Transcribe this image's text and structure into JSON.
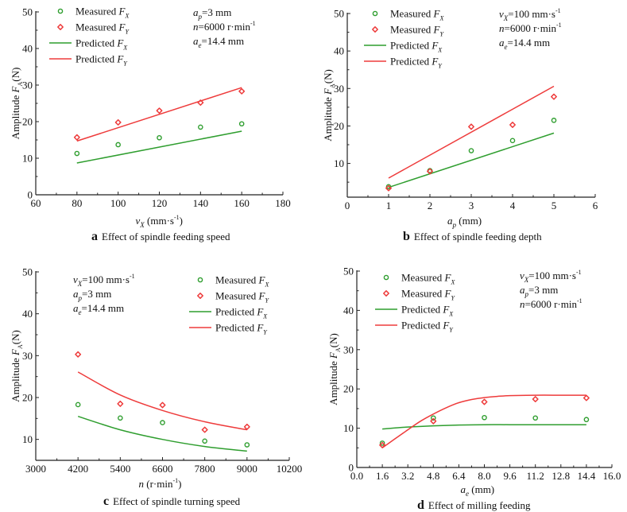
{
  "colors": {
    "fx": "#2f9e2f",
    "fy": "#ee3b3b",
    "axis": "#222222"
  },
  "chart_data": [
    {
      "id": "a",
      "type": "line",
      "caption_letter": "a",
      "caption": "Effect of spindle feeding speed",
      "xlabel": {
        "main": "v",
        "sub": "X",
        "rest": " (mm·s",
        "sup": "-1",
        "end": ")"
      },
      "ylabel": "Amplitude F_A (N)",
      "xlim": [
        60,
        180
      ],
      "ylim": [
        0,
        50
      ],
      "xticks": [
        60,
        80,
        100,
        120,
        140,
        160,
        180
      ],
      "xtick_labels": [
        "60",
        "80",
        "100",
        "120",
        "140",
        "160",
        "180"
      ],
      "yticks": [
        0,
        10,
        20,
        30,
        40,
        50
      ],
      "ytick_labels": [
        "0",
        "10",
        "20",
        "30",
        "40",
        "50"
      ],
      "legend_position": "top-left",
      "annotations": [
        {
          "main": "a",
          "sub": "p",
          "rest": "=3 mm",
          "sup": ""
        },
        {
          "main": "n",
          "sub": "",
          "rest": "=6000 r·min",
          "sup": "-1"
        },
        {
          "main": "a",
          "sub": "e",
          "rest": "=14.4 mm",
          "sup": ""
        }
      ],
      "annotation_position": "top-right",
      "series": [
        {
          "name": "Measured F_X",
          "kind": "measured",
          "component": "X",
          "x": [
            80,
            100,
            120,
            140,
            160
          ],
          "y": [
            11.3,
            13.7,
            15.6,
            18.5,
            19.4
          ]
        },
        {
          "name": "Measured F_Y",
          "kind": "measured",
          "component": "Y",
          "x": [
            80,
            100,
            120,
            140,
            160
          ],
          "y": [
            15.7,
            19.8,
            23.0,
            25.2,
            28.3
          ]
        },
        {
          "name": "Predicted F_X",
          "kind": "predicted",
          "component": "X",
          "x": [
            80,
            160
          ],
          "y": [
            8.7,
            17.4
          ]
        },
        {
          "name": "Predicted F_Y",
          "kind": "predicted",
          "component": "Y",
          "x": [
            80,
            160
          ],
          "y": [
            14.7,
            29.3
          ]
        }
      ]
    },
    {
      "id": "b",
      "type": "line",
      "caption_letter": "b",
      "caption": "Effect of spindle feeding depth",
      "xlabel": {
        "main": "a",
        "sub": "p",
        "rest": " (mm)",
        "sup": "",
        "end": ""
      },
      "ylabel": "Amplitude F_A (N)",
      "xlim": [
        0,
        6
      ],
      "ylim": [
        1,
        50
      ],
      "xticks": [
        0,
        1,
        2,
        3,
        4,
        5,
        6
      ],
      "xtick_labels": [
        "0",
        "1",
        "2",
        "3",
        "4",
        "5",
        "6"
      ],
      "yticks": [
        10,
        20,
        30,
        40,
        50
      ],
      "ytick_labels": [
        "10",
        "20",
        "30",
        "40",
        "50"
      ],
      "legend_position": "top-left",
      "annotations": [
        {
          "main": "v",
          "sub": "X",
          "rest": "=100 mm·s",
          "sup": "-1"
        },
        {
          "main": "n",
          "sub": "",
          "rest": "=6000 r·min",
          "sup": "-1"
        },
        {
          "main": "a",
          "sub": "e",
          "rest": "=14.4 mm",
          "sup": ""
        }
      ],
      "annotation_position": "top-right",
      "series": [
        {
          "name": "Measured F_X",
          "kind": "measured",
          "component": "X",
          "x": [
            1,
            2,
            3,
            4,
            5
          ],
          "y": [
            3.8,
            8.1,
            13.4,
            16.1,
            21.5
          ]
        },
        {
          "name": "Measured F_Y",
          "kind": "measured",
          "component": "Y",
          "x": [
            1,
            2,
            3,
            4,
            5
          ],
          "y": [
            3.4,
            7.9,
            19.8,
            20.3,
            27.8
          ]
        },
        {
          "name": "Predicted F_X",
          "kind": "predicted",
          "component": "X",
          "x": [
            1,
            5
          ],
          "y": [
            3.6,
            18.1
          ]
        },
        {
          "name": "Predicted F_Y",
          "kind": "predicted",
          "component": "Y",
          "x": [
            1,
            5
          ],
          "y": [
            6.1,
            30.6
          ]
        }
      ]
    },
    {
      "id": "c",
      "type": "line",
      "caption_letter": "c",
      "caption": "Effect of spindle turning speed",
      "xlabel": {
        "main": "n",
        "sub": "",
        "rest": " (r·min",
        "sup": "-1",
        "end": ")"
      },
      "ylabel": "Amplitude F_A (N)",
      "xlim": [
        3000,
        10200
      ],
      "ylim": [
        5,
        50
      ],
      "xticks": [
        3000,
        4200,
        5400,
        6600,
        7800,
        9000,
        10200
      ],
      "xtick_labels": [
        "3000",
        "4200",
        "5400",
        "6600",
        "7800",
        "9000",
        "10200"
      ],
      "yticks": [
        10,
        20,
        30,
        40,
        50
      ],
      "ytick_labels": [
        "10",
        "20",
        "30",
        "40",
        "50"
      ],
      "legend_position": "top-right",
      "annotations": [
        {
          "main": "v",
          "sub": "X",
          "rest": "=100 mm·s",
          "sup": "-1"
        },
        {
          "main": "a",
          "sub": "p",
          "rest": "=3 mm",
          "sup": ""
        },
        {
          "main": "a",
          "sub": "e",
          "rest": "=14.4 mm",
          "sup": ""
        }
      ],
      "annotation_position": "top-left",
      "series": [
        {
          "name": "Measured F_X",
          "kind": "measured",
          "component": "X",
          "x": [
            4200,
            5400,
            6600,
            7800,
            9000
          ],
          "y": [
            18.3,
            15.1,
            14.0,
            9.6,
            8.7
          ]
        },
        {
          "name": "Measured F_Y",
          "kind": "measured",
          "component": "Y",
          "x": [
            4200,
            5400,
            6600,
            7800,
            9000
          ],
          "y": [
            30.3,
            18.5,
            18.2,
            12.3,
            13.0
          ]
        },
        {
          "name": "Predicted F_X",
          "kind": "predicted",
          "component": "X",
          "x": [
            4200,
            5400,
            6600,
            7800,
            9000
          ],
          "y": [
            15.5,
            12.3,
            10.0,
            8.3,
            7.2
          ]
        },
        {
          "name": "Predicted F_Y",
          "kind": "predicted",
          "component": "Y",
          "x": [
            4200,
            5400,
            6600,
            7800,
            9000
          ],
          "y": [
            26.1,
            20.6,
            16.9,
            14.2,
            12.3
          ]
        }
      ]
    },
    {
      "id": "d",
      "type": "line",
      "caption_letter": "d",
      "caption": "Effect of milling feeding",
      "xlabel": {
        "main": "a",
        "sub": "e",
        "rest": " (mm)",
        "sup": "",
        "end": ""
      },
      "ylabel": "Amplitude F_A (N)",
      "xlim": [
        0,
        16
      ],
      "ylim": [
        0,
        50
      ],
      "xticks": [
        0,
        1.6,
        3.2,
        4.8,
        6.4,
        8.0,
        9.6,
        11.2,
        12.8,
        14.4,
        16.0
      ],
      "xtick_labels": [
        "0.0",
        "1.6",
        "3.2",
        "4.8",
        "6.4",
        "8.0",
        "9.6",
        "11.2",
        "12.8",
        "14.4",
        "16.0"
      ],
      "yticks": [
        0,
        10,
        20,
        30,
        40,
        50
      ],
      "ytick_labels": [
        "0",
        "10",
        "20",
        "30",
        "40",
        "50"
      ],
      "legend_position": "top-left",
      "annotations": [
        {
          "main": "v",
          "sub": "X",
          "rest": "=100 mm·s",
          "sup": "-1"
        },
        {
          "main": "a",
          "sub": "p",
          "rest": "=3 mm",
          "sup": ""
        },
        {
          "main": "n",
          "sub": "",
          "rest": "=6000 r·min",
          "sup": "-1"
        }
      ],
      "annotation_position": "top-right",
      "series": [
        {
          "name": "Measured F_X",
          "kind": "measured",
          "component": "X",
          "x": [
            1.6,
            4.8,
            8.0,
            11.2,
            14.4
          ],
          "y": [
            6.2,
            12.6,
            12.7,
            12.6,
            12.2
          ]
        },
        {
          "name": "Measured F_Y",
          "kind": "measured",
          "component": "Y",
          "x": [
            1.6,
            4.8,
            8.0,
            11.2,
            14.4
          ],
          "y": [
            5.7,
            11.8,
            16.7,
            17.4,
            17.7
          ]
        },
        {
          "name": "Predicted F_X",
          "kind": "predicted",
          "component": "X",
          "x": [
            1.6,
            3.2,
            4.8,
            6.4,
            8.0,
            9.6,
            11.2,
            12.8,
            14.4
          ],
          "y": [
            9.8,
            10.3,
            10.6,
            10.8,
            10.9,
            10.9,
            10.9,
            10.9,
            10.9
          ]
        },
        {
          "name": "Predicted F_Y",
          "kind": "predicted",
          "component": "Y",
          "x": [
            1.6,
            2.4,
            3.2,
            4.0,
            4.8,
            5.6,
            6.4,
            7.2,
            8.0,
            8.8,
            9.6,
            11.2,
            12.8,
            14.4
          ],
          "y": [
            5.0,
            7.3,
            9.6,
            11.8,
            13.6,
            15.2,
            16.5,
            17.3,
            17.8,
            18.1,
            18.3,
            18.4,
            18.4,
            18.4
          ]
        }
      ]
    }
  ]
}
